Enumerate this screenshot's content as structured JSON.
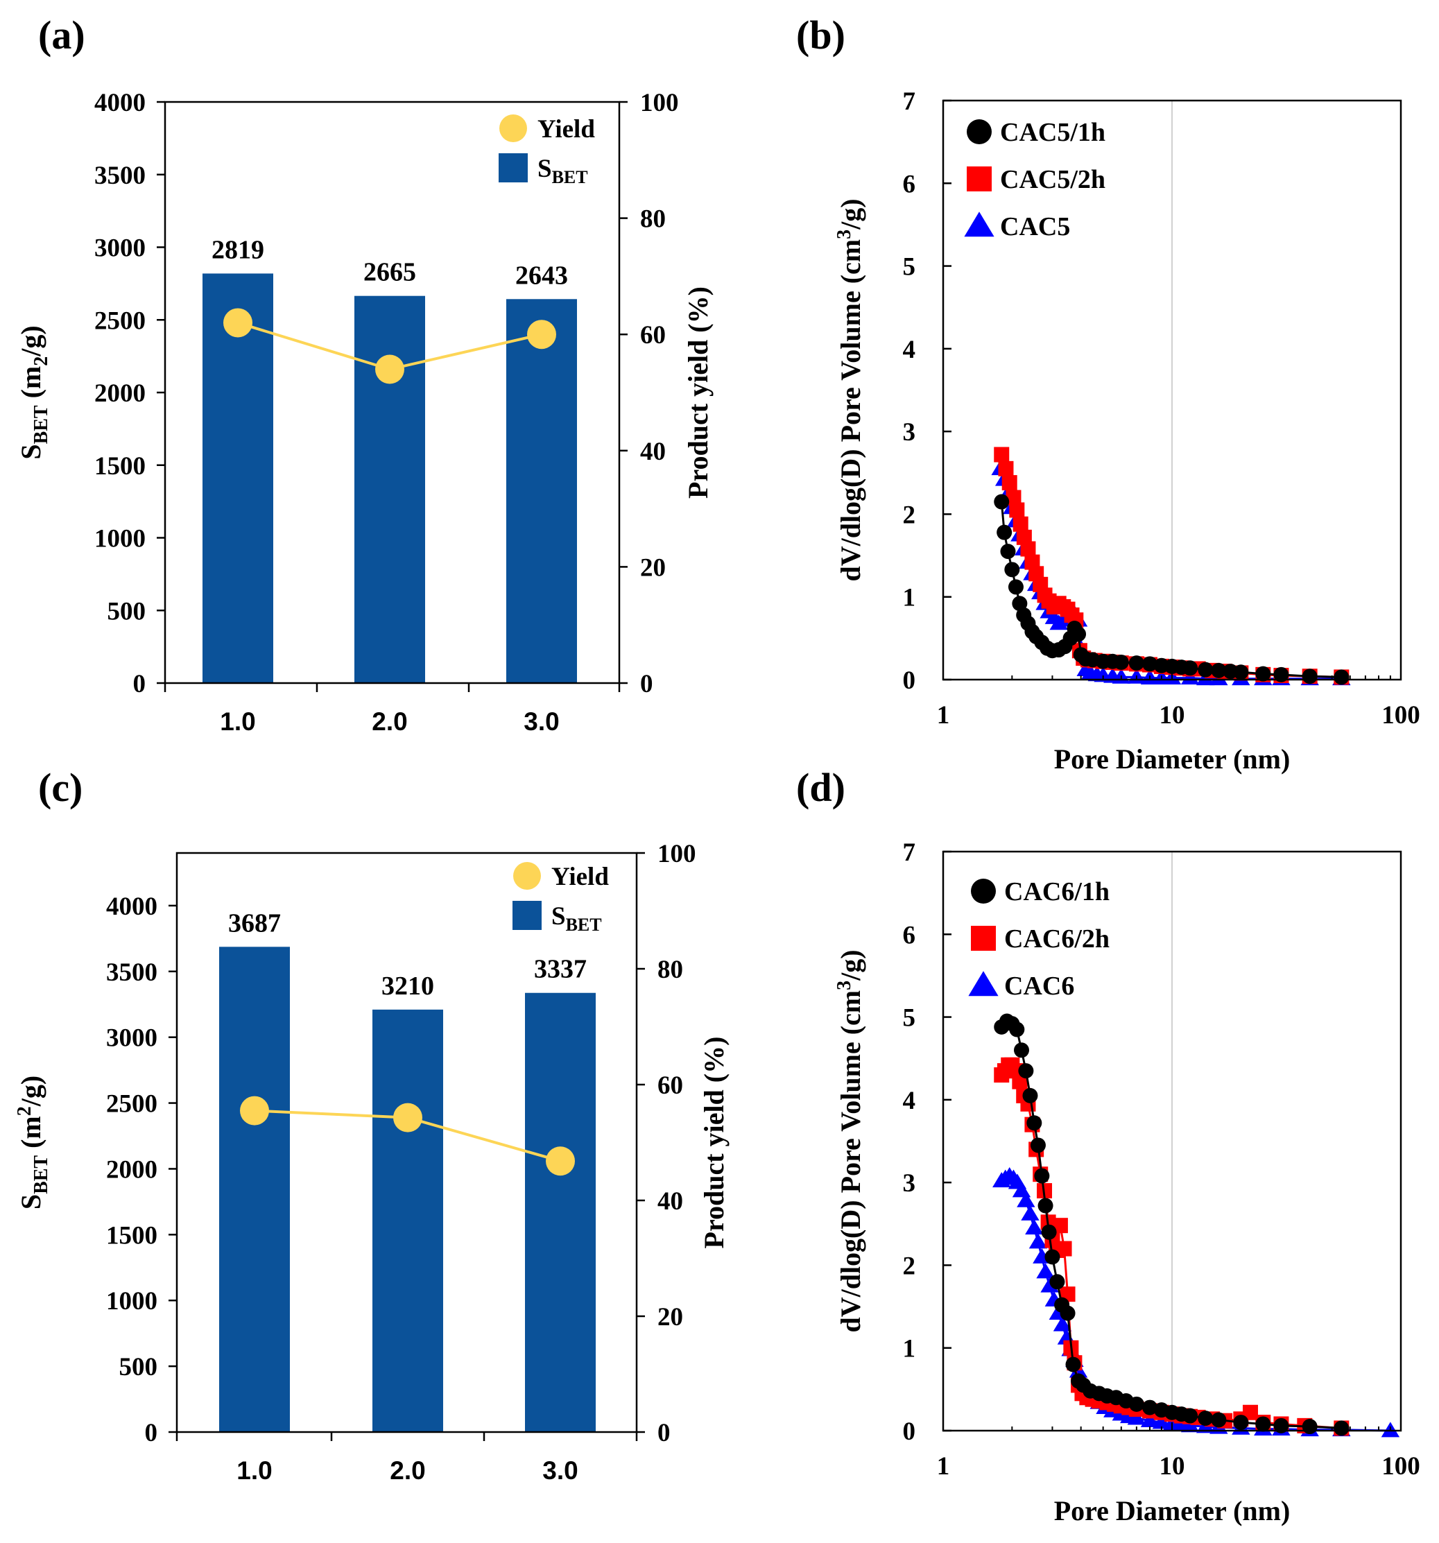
{
  "chart_data": [
    {
      "panel_label": "(a)",
      "type": "bar",
      "categories": [
        "1.0",
        "2.0",
        "3.0"
      ],
      "series": [
        {
          "name": "S",
          "subscript": "BET",
          "kind": "bar",
          "axis": "left",
          "values": [
            2819,
            2665,
            2643
          ]
        },
        {
          "name": "Yield",
          "kind": "line",
          "axis": "right",
          "values": [
            62,
            54,
            60
          ]
        }
      ],
      "data_labels": [
        "2819",
        "2665",
        "2643"
      ],
      "ylabel": {
        "main": "S",
        "sub": "BET",
        "units": " (m",
        "units_sub": "2",
        "units_end": "/g)"
      },
      "y2label": "Product yield (%)",
      "ylim": [
        0,
        4000
      ],
      "yticks": [
        "0",
        "500",
        "1000",
        "1500",
        "2000",
        "2500",
        "3000",
        "3500",
        "4000"
      ],
      "y2lim": [
        0,
        100
      ],
      "y2ticks": [
        "0",
        "20",
        "40",
        "60",
        "80",
        "100"
      ],
      "legend_position": "top-right"
    },
    {
      "panel_label": "(b)",
      "type": "scatter",
      "xscale": "log",
      "xlim": [
        1,
        100
      ],
      "xticks": [
        "1",
        "10",
        "100"
      ],
      "xlabel": "Pore Diameter (nm)",
      "ylim": [
        0,
        7
      ],
      "yticks": [
        "0",
        "1",
        "2",
        "3",
        "4",
        "5",
        "6",
        "7"
      ],
      "ylabel": {
        "main": "dV/dlog(D) Pore Volume (cm",
        "sup": "3",
        "end": "/g)"
      },
      "legend_position": "top-left",
      "series": [
        {
          "name": "CAC5/1h",
          "marker": "circle",
          "color": "#000000",
          "x": [
            1.8,
            1.85,
            1.92,
            2.0,
            2.08,
            2.16,
            2.25,
            2.35,
            2.45,
            2.55,
            2.7,
            2.85,
            3.0,
            3.2,
            3.4,
            3.6,
            3.75,
            3.9,
            4.0,
            4.2,
            4.5,
            5.0,
            5.5,
            6.0,
            7.0,
            8.0,
            9.0,
            10.0,
            11.0,
            12.0,
            14.0,
            16.0,
            18.0,
            20.0,
            25.0,
            30.0,
            40.0,
            55.0
          ],
          "y": [
            2.15,
            1.78,
            1.55,
            1.33,
            1.12,
            0.92,
            0.78,
            0.68,
            0.58,
            0.52,
            0.45,
            0.38,
            0.35,
            0.36,
            0.4,
            0.5,
            0.62,
            0.55,
            0.3,
            0.25,
            0.24,
            0.22,
            0.22,
            0.21,
            0.2,
            0.19,
            0.17,
            0.16,
            0.15,
            0.14,
            0.12,
            0.11,
            0.1,
            0.09,
            0.07,
            0.06,
            0.04,
            0.03
          ]
        },
        {
          "name": "CAC5/2h",
          "marker": "square",
          "color": "#ff0000",
          "x": [
            1.8,
            1.88,
            1.95,
            2.03,
            2.1,
            2.18,
            2.26,
            2.35,
            2.45,
            2.55,
            2.66,
            2.78,
            2.9,
            3.05,
            3.2,
            3.35,
            3.5,
            3.65,
            3.8,
            3.95,
            4.1,
            4.3,
            4.6,
            5.0,
            5.5,
            6.0,
            7.0,
            8.0,
            9.0,
            10.0,
            11.0,
            12.0,
            13.0,
            15.0,
            17.0,
            20.0,
            25.0,
            30.0,
            40.0,
            55.0
          ],
          "y": [
            2.72,
            2.55,
            2.38,
            2.2,
            2.05,
            1.88,
            1.72,
            1.58,
            1.42,
            1.28,
            1.15,
            1.02,
            0.95,
            0.88,
            0.92,
            0.88,
            0.85,
            0.78,
            0.72,
            0.35,
            0.26,
            0.24,
            0.23,
            0.22,
            0.21,
            0.2,
            0.19,
            0.18,
            0.16,
            0.15,
            0.14,
            0.13,
            0.13,
            0.11,
            0.1,
            0.08,
            0.06,
            0.05,
            0.04,
            0.03
          ]
        },
        {
          "name": "CAC5",
          "marker": "triangle",
          "color": "#0000ff",
          "x": [
            1.78,
            1.85,
            1.92,
            2.0,
            2.08,
            2.16,
            2.25,
            2.35,
            2.45,
            2.55,
            2.66,
            2.78,
            2.9,
            3.05,
            3.2,
            3.35,
            3.5,
            3.7,
            3.9,
            4.05,
            4.2,
            4.4,
            4.7,
            5.0,
            5.5,
            6.0,
            7.0,
            8.0,
            9.0,
            10.0,
            12.0,
            14.0,
            16.0,
            20.0,
            25.0,
            30.0,
            40.0,
            55.0
          ],
          "y": [
            2.55,
            2.42,
            2.25,
            2.08,
            1.92,
            1.75,
            1.58,
            1.42,
            1.28,
            1.15,
            1.05,
            0.92,
            0.82,
            0.75,
            0.68,
            0.72,
            0.78,
            0.82,
            0.72,
            0.35,
            0.12,
            0.08,
            0.06,
            0.05,
            0.04,
            0.03,
            0.03,
            0.02,
            0.02,
            0.02,
            0.02,
            0.01,
            0.01,
            0.01,
            0.01,
            0.01,
            0.01,
            0.01
          ]
        }
      ]
    },
    {
      "panel_label": "(c)",
      "type": "bar",
      "categories": [
        "1.0",
        "2.0",
        "3.0"
      ],
      "series": [
        {
          "name": "S",
          "subscript": "BET",
          "kind": "bar",
          "axis": "left",
          "values": [
            3687,
            3210,
            3337
          ]
        },
        {
          "name": "Yield",
          "kind": "line",
          "axis": "right",
          "values": [
            55.5,
            54.3,
            46.8
          ]
        }
      ],
      "data_labels": [
        "3687",
        "3210",
        "3337"
      ],
      "ylabel": {
        "main": "S",
        "sub": "BET",
        "units": " (m",
        "units_sup": "2",
        "units_end": "/g)"
      },
      "y2label": "Product yield (%)",
      "ylim": [
        0,
        4400
      ],
      "yticks": [
        "0",
        "500",
        "1000",
        "1500",
        "2000",
        "2500",
        "3000",
        "3500",
        "4000"
      ],
      "y2lim": [
        0,
        100
      ],
      "y2ticks": [
        "0",
        "20",
        "40",
        "60",
        "80",
        "100"
      ],
      "legend_position": "top-right"
    },
    {
      "panel_label": "(d)",
      "type": "scatter",
      "xscale": "log",
      "xlim": [
        1,
        100
      ],
      "xticks": [
        "1",
        "10",
        "100"
      ],
      "xlabel": "Pore Diameter (nm)",
      "ylim": [
        0,
        7
      ],
      "yticks": [
        "0",
        "1",
        "2",
        "3",
        "4",
        "5",
        "6",
        "7"
      ],
      "ylabel": {
        "main": "dV/dlog(D) Pore Volume (cm",
        "sup": "3",
        "end": "/g)"
      },
      "legend_position": "top-left",
      "series": [
        {
          "name": "CAC6/1h",
          "marker": "circle",
          "color": "#000000",
          "x": [
            1.8,
            1.9,
            2.0,
            2.1,
            2.2,
            2.3,
            2.4,
            2.5,
            2.6,
            2.7,
            2.8,
            2.9,
            3.0,
            3.15,
            3.3,
            3.5,
            3.7,
            3.9,
            4.1,
            4.4,
            4.8,
            5.2,
            5.7,
            6.3,
            7.0,
            8.0,
            9.0,
            10.0,
            11.0,
            12.0,
            14.0,
            16.0,
            20.0,
            25.0,
            30.0,
            40.0,
            55.0
          ],
          "y": [
            4.88,
            4.95,
            4.92,
            4.85,
            4.6,
            4.35,
            4.05,
            3.72,
            3.45,
            3.08,
            2.72,
            2.4,
            2.1,
            1.8,
            1.52,
            1.42,
            0.8,
            0.6,
            0.55,
            0.48,
            0.45,
            0.42,
            0.4,
            0.36,
            0.32,
            0.28,
            0.25,
            0.22,
            0.2,
            0.18,
            0.15,
            0.13,
            0.1,
            0.08,
            0.06,
            0.05,
            0.03
          ]
        },
        {
          "name": "CAC6/2h",
          "marker": "square",
          "color": "#ff0000",
          "x": [
            1.8,
            1.86,
            1.93,
            2.0,
            2.08,
            2.16,
            2.25,
            2.35,
            2.45,
            2.55,
            2.66,
            2.77,
            2.88,
            3.0,
            3.12,
            3.25,
            3.38,
            3.5,
            3.62,
            3.75,
            3.9,
            4.05,
            4.25,
            4.5,
            4.8,
            5.2,
            5.6,
            6.0,
            6.5,
            7.0,
            8.0,
            9.0,
            10.0,
            11.0,
            12.0,
            13.0,
            15.0,
            17.0,
            20.0,
            22.0,
            25.0,
            30.0,
            38.0,
            55.0
          ],
          "y": [
            4.3,
            4.35,
            4.42,
            4.42,
            4.35,
            4.22,
            4.05,
            3.95,
            3.7,
            3.4,
            3.1,
            2.9,
            2.52,
            2.3,
            2.18,
            2.48,
            2.2,
            1.65,
            1.0,
            0.82,
            0.55,
            0.45,
            0.4,
            0.38,
            0.36,
            0.34,
            0.32,
            0.3,
            0.28,
            0.26,
            0.24,
            0.22,
            0.2,
            0.18,
            0.17,
            0.16,
            0.14,
            0.12,
            0.14,
            0.22,
            0.1,
            0.08,
            0.06,
            0.03
          ]
        },
        {
          "name": "CAC6",
          "marker": "triangle",
          "color": "#0000ff",
          "x": [
            1.8,
            1.87,
            1.95,
            2.03,
            2.11,
            2.2,
            2.3,
            2.4,
            2.5,
            2.6,
            2.7,
            2.8,
            2.92,
            3.05,
            3.18,
            3.32,
            3.46,
            3.6,
            3.75,
            3.9,
            4.1,
            4.3,
            4.55,
            4.8,
            5.1,
            5.5,
            6.0,
            6.5,
            7.0,
            8.0,
            9.0,
            10.0,
            11.0,
            12.0,
            14.0,
            16.0,
            20.0,
            25.0,
            30.0,
            40.0,
            55.0,
            90.0
          ],
          "y": [
            3.02,
            3.05,
            3.08,
            3.05,
            3.0,
            2.9,
            2.78,
            2.62,
            2.45,
            2.28,
            2.1,
            1.92,
            1.75,
            1.58,
            1.42,
            1.28,
            1.12,
            0.98,
            0.85,
            0.72,
            0.58,
            0.48,
            0.4,
            0.34,
            0.28,
            0.24,
            0.2,
            0.17,
            0.15,
            0.12,
            0.1,
            0.08,
            0.07,
            0.06,
            0.05,
            0.04,
            0.03,
            0.02,
            0.02,
            0.01,
            0.01,
            0.0
          ]
        }
      ]
    }
  ]
}
